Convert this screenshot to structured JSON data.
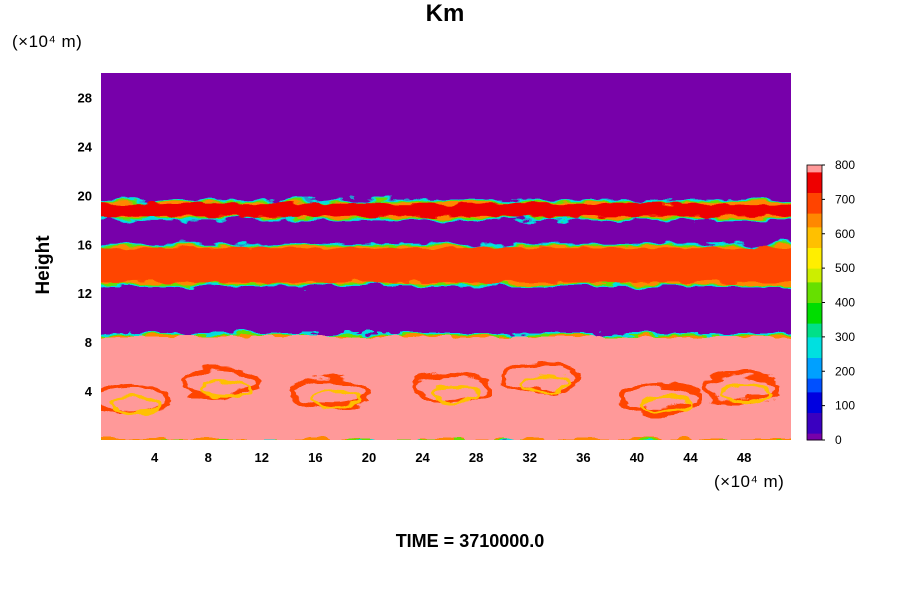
{
  "chart_data": {
    "type": "heatmap",
    "title": "Km",
    "ylabel": "Height",
    "y_unit": "(×10⁴ m)",
    "x_unit": "(×10⁴ m)",
    "xlim": [
      0,
      51.5
    ],
    "ylim": [
      0,
      30
    ],
    "x_ticks": [
      4,
      8,
      12,
      16,
      20,
      24,
      28,
      32,
      36,
      40,
      44,
      48
    ],
    "y_ticks": [
      4,
      8,
      12,
      16,
      20,
      24,
      28
    ],
    "colorbar": {
      "min": 0,
      "max": 800,
      "ticks": [
        0,
        100,
        200,
        300,
        400,
        500,
        600,
        700,
        800
      ]
    },
    "field_bands": [
      {
        "y_range": [
          0,
          8.5
        ],
        "value": "high (~800), turbulent structures",
        "level": 780
      },
      {
        "y_range": [
          8.5,
          12.8
        ],
        "value": "0",
        "level": 0
      },
      {
        "y_range": [
          12.8,
          15.8
        ],
        "value": "high, turbulent layer",
        "level": 700
      },
      {
        "y_range": [
          15.8,
          18.2
        ],
        "value": "0",
        "level": 0
      },
      {
        "y_range": [
          18.2,
          19.4
        ],
        "value": "high, thin layer",
        "level": 760
      },
      {
        "y_range": [
          19.4,
          30
        ],
        "value": "0",
        "level": 0
      }
    ],
    "footer": "TIME = 3710000.0"
  },
  "colors": {
    "colormap": [
      "#7700aa",
      "#3a00c0",
      "#0000e0",
      "#0050ff",
      "#00a0ff",
      "#00e0e0",
      "#00e088",
      "#00dd00",
      "#66e000",
      "#ccee00",
      "#ffee00",
      "#ffc000",
      "#ff8800",
      "#ff4400",
      "#ee0000",
      "#ff9999"
    ]
  }
}
